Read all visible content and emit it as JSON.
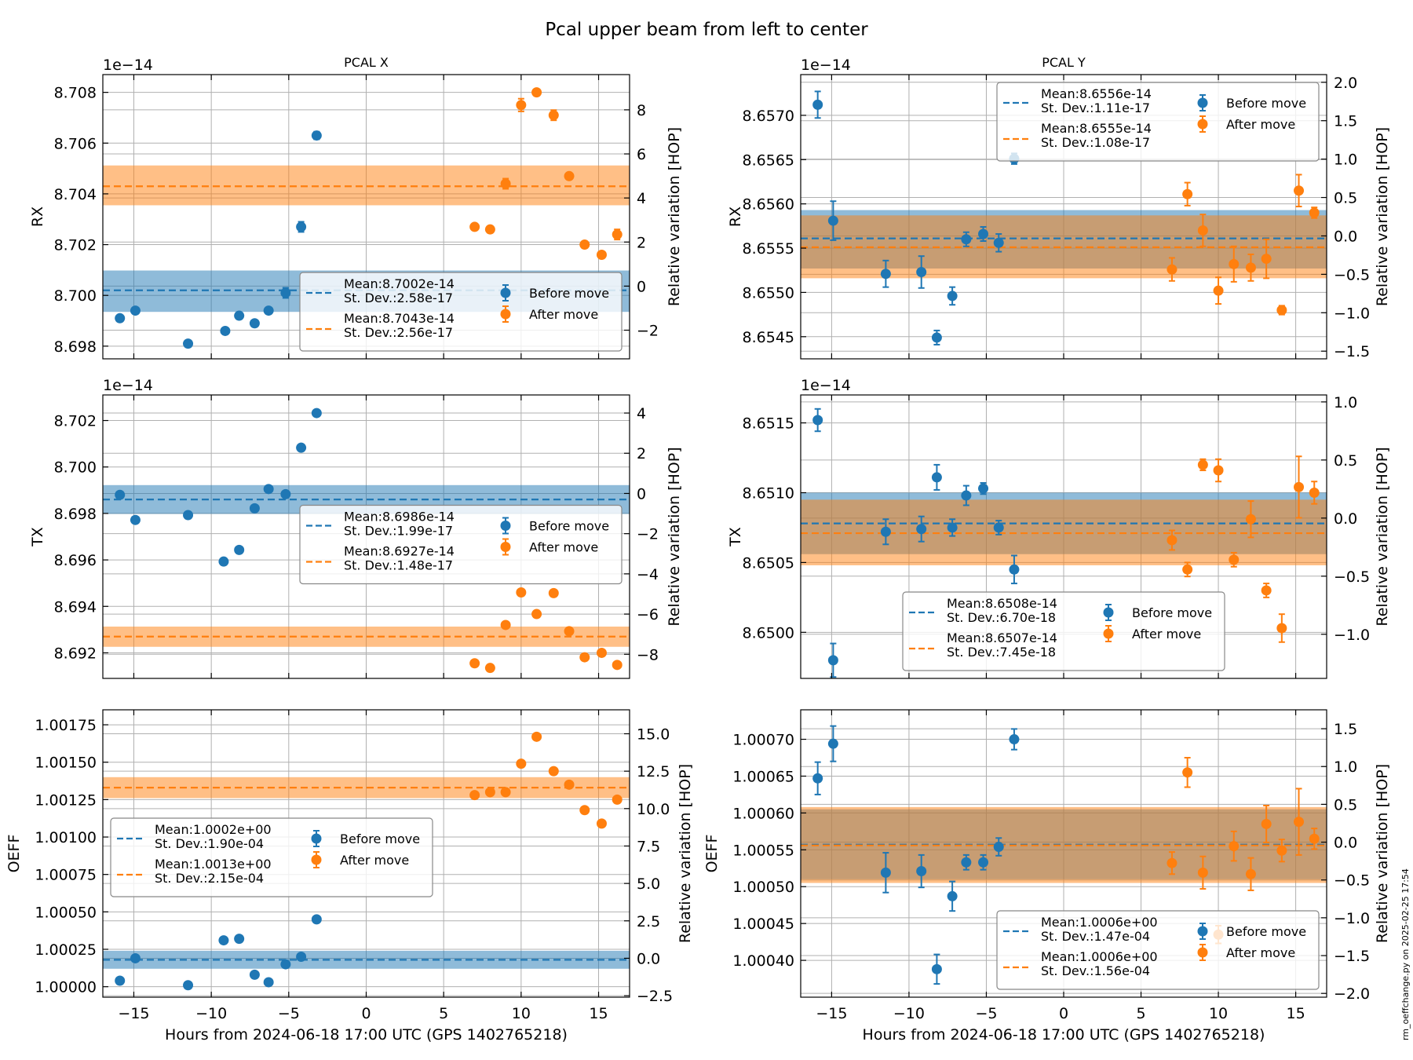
{
  "figure": {
    "title": "Pcal upper beam from left to center",
    "footer": "rm_oeffchange.py on 2025-02-25 17:54",
    "xlabel": "Hours from 2024-06-18 17:00 UTC (GPS 1402765218)"
  },
  "legend_labels": {
    "before": "Before move",
    "after": "After move"
  },
  "colors": {
    "before": "#1f77b4",
    "after": "#ff7f0e",
    "grid": "#b0b0b0"
  },
  "chart_data": [
    {
      "id": "x_rx",
      "column": "PCAL X",
      "type": "scatter",
      "title": "PCAL X",
      "ylabel": "RX",
      "ylabel_right": "Relative variation [HOP]",
      "offset_label": "1e−14",
      "xlim": [
        -17,
        17
      ],
      "xticks": [
        -15,
        -10,
        -5,
        0,
        5,
        10,
        15
      ],
      "show_xticklabels": false,
      "ylim": [
        8.6975,
        8.7087
      ],
      "yticks": [
        8.698,
        8.7,
        8.702,
        8.704,
        8.706,
        8.708
      ],
      "ytick_labels": [
        "8.698",
        "8.700",
        "8.702",
        "8.704",
        "8.706",
        "8.708"
      ],
      "ylim_right": [
        -3.3,
        9.6
      ],
      "yticks_right": [
        -2,
        0,
        2,
        4,
        6,
        8
      ],
      "ytick_labels_right": [
        "−2",
        "0",
        "2",
        "4",
        "6",
        "8"
      ],
      "legend": {
        "position": "lower-right",
        "before_mean": "Mean:8.7002e-14",
        "before_std": "St. Dev.:2.58e-17",
        "after_mean": "Mean:8.7043e-14",
        "after_std": "St. Dev.:2.56e-17"
      },
      "series": [
        {
          "name": "Before move",
          "mean": 8.7002,
          "std_band": [
            8.69935,
            8.70098
          ],
          "x": [
            -15.9,
            -14.9,
            -11.5,
            -9.1,
            -8.2,
            -7.2,
            -6.3,
            -5.2,
            -4.2,
            -3.2
          ],
          "y": [
            8.6991,
            8.6994,
            8.6981,
            8.6986,
            8.6992,
            8.6989,
            8.6994,
            8.7001,
            8.7027,
            8.7063
          ],
          "err": [
            5e-05,
            5e-05,
            5e-05,
            5e-05,
            5e-05,
            5e-05,
            5e-05,
            0.0002,
            0.0002,
            0.00015
          ]
        },
        {
          "name": "After move",
          "mean": 8.7043,
          "std_band": [
            8.70355,
            8.70512
          ],
          "x": [
            7.0,
            8.0,
            9.0,
            10.0,
            11.0,
            12.1,
            13.1,
            14.1,
            15.2,
            16.2
          ],
          "y": [
            8.7027,
            8.7026,
            8.7044,
            8.7075,
            8.708,
            8.7071,
            8.7047,
            8.702,
            8.7016,
            8.7024
          ],
          "err": [
            5e-05,
            5e-05,
            0.0002,
            0.00025,
            5e-05,
            0.0002,
            5e-05,
            5e-05,
            5e-05,
            0.0002
          ]
        }
      ]
    },
    {
      "id": "y_rx",
      "column": "PCAL Y",
      "type": "scatter",
      "title": "PCAL Y",
      "ylabel": "RX",
      "ylabel_right": "Relative variation [HOP]",
      "offset_label": "1e−14",
      "xlim": [
        -17,
        17
      ],
      "xticks": [
        -15,
        -10,
        -5,
        0,
        5,
        10,
        15
      ],
      "show_xticklabels": false,
      "ylim": [
        8.65425,
        8.65746
      ],
      "yticks": [
        8.6545,
        8.655,
        8.6555,
        8.656,
        8.6565,
        8.657
      ],
      "ytick_labels": [
        "8.6545",
        "8.6550",
        "8.6555",
        "8.6560",
        "8.6565",
        "8.6570"
      ],
      "ylim_right": [
        -1.6,
        2.1
      ],
      "yticks_right": [
        -1.5,
        -1.0,
        -0.5,
        0.0,
        0.5,
        1.0,
        1.5,
        2.0
      ],
      "ytick_labels_right": [
        "−1.5",
        "−1.0",
        "−0.5",
        "0.0",
        "0.5",
        "1.0",
        "1.5",
        "2.0"
      ],
      "legend": {
        "position": "upper-right",
        "before_mean": "Mean:8.6556e-14",
        "before_std": "St. Dev.:1.11e-17",
        "after_mean": "Mean:8.6555e-14",
        "after_std": "St. Dev.:1.08e-17"
      },
      "series": [
        {
          "name": "Before move",
          "mean": 8.65561,
          "std_band": [
            8.65527,
            8.65593
          ],
          "x": [
            -15.9,
            -14.9,
            -11.5,
            -9.2,
            -8.2,
            -7.2,
            -6.3,
            -5.2,
            -4.2,
            -3.2
          ],
          "y": [
            8.65712,
            8.65581,
            8.65521,
            8.65523,
            8.65449,
            8.65496,
            8.6556,
            8.65566,
            8.65556,
            8.65651
          ],
          "err": [
            0.00015,
            0.00022,
            0.00015,
            0.00018,
            8e-05,
            0.0001,
            8e-05,
            8e-05,
            0.0001,
            6e-05
          ]
        },
        {
          "name": "After move",
          "mean": 8.65551,
          "std_band": [
            8.65516,
            8.65587
          ],
          "x": [
            7.0,
            8.0,
            9.0,
            10.0,
            11.0,
            12.1,
            13.1,
            14.1,
            15.2,
            16.2
          ],
          "y": [
            8.65526,
            8.65611,
            8.6557,
            8.65502,
            8.65532,
            8.65528,
            8.65538,
            8.6548,
            8.65615,
            8.6559
          ],
          "err": [
            0.00013,
            0.00013,
            0.00018,
            0.00015,
            0.0002,
            0.00015,
            0.00022,
            5e-05,
            0.00018,
            6e-05
          ]
        }
      ]
    },
    {
      "id": "x_tx",
      "column": "PCAL X",
      "type": "scatter",
      "ylabel": "TX",
      "ylabel_right": "Relative variation [HOP]",
      "offset_label": "1e−14",
      "xlim": [
        -17,
        17
      ],
      "xticks": [
        -15,
        -10,
        -5,
        0,
        5,
        10,
        15
      ],
      "show_xticklabels": false,
      "ylim": [
        8.6909,
        8.7031
      ],
      "yticks": [
        8.692,
        8.694,
        8.696,
        8.698,
        8.7,
        8.702
      ],
      "ytick_labels": [
        "8.692",
        "8.694",
        "8.696",
        "8.698",
        "8.700",
        "8.702"
      ],
      "ylim_right": [
        -9.2,
        4.9
      ],
      "yticks_right": [
        -8,
        -6,
        -4,
        -2,
        0,
        2,
        4
      ],
      "ytick_labels_right": [
        "−8",
        "−6",
        "−4",
        "−2",
        "0",
        "2",
        "4"
      ],
      "legend": {
        "position": "center-right",
        "before_mean": "Mean:8.6986e-14",
        "before_std": "St. Dev.:1.99e-17",
        "after_mean": "Mean:8.6927e-14",
        "after_std": "St. Dev.:1.48e-17"
      },
      "series": [
        {
          "name": "Before move",
          "mean": 8.6986,
          "std_band": [
            8.69798,
            8.69922
          ],
          "x": [
            -15.9,
            -14.9,
            -11.5,
            -9.2,
            -8.2,
            -7.2,
            -6.3,
            -5.2,
            -4.2,
            -3.2
          ],
          "y": [
            8.6988,
            8.69772,
            8.69793,
            8.69593,
            8.69643,
            8.69822,
            8.69905,
            8.69883,
            8.70083,
            8.70232
          ],
          "err": [
            5e-05,
            5e-05,
            5e-05,
            5e-05,
            5e-05,
            5e-05,
            5e-05,
            5e-05,
            5e-05,
            5e-05
          ]
        },
        {
          "name": "After move",
          "mean": 8.6927,
          "std_band": [
            8.69226,
            8.69313
          ],
          "x": [
            7.0,
            8.0,
            9.0,
            10.0,
            11.0,
            12.1,
            13.1,
            14.1,
            15.2,
            16.2
          ],
          "y": [
            8.69155,
            8.69135,
            8.6932,
            8.6946,
            8.69367,
            8.69457,
            8.69293,
            8.69181,
            8.692,
            8.69148
          ],
          "err": [
            5e-05,
            5e-05,
            5e-05,
            5e-05,
            5e-05,
            5e-05,
            5e-05,
            5e-05,
            5e-05,
            5e-05
          ]
        }
      ]
    },
    {
      "id": "y_tx",
      "column": "PCAL Y",
      "type": "scatter",
      "ylabel": "TX",
      "ylabel_right": "Relative variation [HOP]",
      "offset_label": "1e−14",
      "xlim": [
        -17,
        17
      ],
      "xticks": [
        -15,
        -10,
        -5,
        0,
        5,
        10,
        15
      ],
      "show_xticklabels": false,
      "ylim": [
        8.64967,
        8.6517
      ],
      "yticks": [
        8.65,
        8.6505,
        8.651,
        8.6515
      ],
      "ytick_labels": [
        "8.6500",
        "8.6505",
        "8.6510",
        "8.6515"
      ],
      "ylim_right": [
        -1.38,
        1.06
      ],
      "yticks_right": [
        -1.0,
        -0.5,
        0.0,
        0.5,
        1.0
      ],
      "ytick_labels_right": [
        "−1.0",
        "−0.5",
        "0.0",
        "0.5",
        "1.0"
      ],
      "legend": {
        "position": "lower-center",
        "before_mean": "Mean:8.6508e-14",
        "before_std": "St. Dev.:6.70e-18",
        "after_mean": "Mean:8.6507e-14",
        "after_std": "St. Dev.:7.45e-18"
      },
      "series": [
        {
          "name": "Before move",
          "mean": 8.65078,
          "std_band": [
            8.65056,
            8.651
          ],
          "x": [
            -15.9,
            -14.9,
            -11.5,
            -9.2,
            -8.2,
            -7.2,
            -6.3,
            -5.2,
            -4.2,
            -3.2
          ],
          "y": [
            8.65152,
            8.6498,
            8.65072,
            8.65074,
            8.65111,
            8.65075,
            8.65098,
            8.65103,
            8.65075,
            8.65045
          ],
          "err": [
            8e-05,
            0.00012,
            9e-05,
            9e-05,
            9e-05,
            6e-05,
            7e-05,
            4e-05,
            5e-05,
            0.0001
          ]
        },
        {
          "name": "After move",
          "mean": 8.65071,
          "std_band": [
            8.65048,
            8.65095
          ],
          "x": [
            7.0,
            8.0,
            9.0,
            10.0,
            11.0,
            12.1,
            13.1,
            14.1,
            15.2,
            16.2
          ],
          "y": [
            8.65066,
            8.65045,
            8.6512,
            8.65116,
            8.65052,
            8.65081,
            8.6503,
            8.65003,
            8.65104,
            8.651
          ],
          "err": [
            7e-05,
            5e-05,
            4e-05,
            8e-05,
            5e-05,
            0.00013,
            5e-05,
            0.0001,
            0.00022,
            8e-05
          ]
        }
      ]
    },
    {
      "id": "x_oeff",
      "column": "PCAL X",
      "type": "scatter",
      "ylabel": "OEFF",
      "ylabel_right": "Relative variation [HOP]",
      "offset_label": "",
      "xlim": [
        -17,
        17
      ],
      "xticks": [
        -15,
        -10,
        -5,
        0,
        5,
        10,
        15
      ],
      "show_xticklabels": true,
      "xtick_labels": [
        "−15",
        "−10",
        "−5",
        "0",
        "5",
        "10",
        "15"
      ],
      "xlabel": "Hours from 2024-06-18 17:00 UTC (GPS 1402765218)",
      "ylim": [
        0.99993,
        1.00185
      ],
      "yticks": [
        1.0,
        1.00025,
        1.0005,
        1.00075,
        1.001,
        1.00125,
        1.0015,
        1.00175
      ],
      "ytick_labels": [
        "1.00000",
        "1.00025",
        "1.00050",
        "1.00075",
        "1.00100",
        "1.00125",
        "1.00150",
        "1.00175"
      ],
      "ylim_right": [
        -2.6,
        16.6
      ],
      "yticks_right": [
        -2.5,
        0.0,
        2.5,
        5.0,
        7.5,
        10.0,
        12.5,
        15.0
      ],
      "ytick_labels_right": [
        "−2.5",
        "0.0",
        "2.5",
        "5.0",
        "7.5",
        "10.0",
        "12.5",
        "15.0"
      ],
      "legend": {
        "position": "center-left",
        "before_mean": "Mean:1.0002e+00",
        "before_std": "St. Dev.:1.90e-04",
        "after_mean": "Mean:1.0013e+00",
        "after_std": "St. Dev.:2.15e-04"
      },
      "series": [
        {
          "name": "Before move",
          "mean": 1.00018,
          "std_band": [
            1.00012,
            1.00024
          ],
          "x": [
            -15.9,
            -14.9,
            -11.5,
            -9.2,
            -8.2,
            -7.2,
            -6.3,
            -5.2,
            -4.2,
            -3.2
          ],
          "y": [
            1.00004,
            1.00019,
            1.00001,
            1.00031,
            1.00032,
            1.00008,
            1.00003,
            1.00015,
            1.0002,
            1.00045
          ],
          "err": [
            2e-05,
            2e-05,
            2e-05,
            2e-05,
            2e-05,
            2e-05,
            2e-05,
            2e-05,
            2e-05,
            2e-05
          ]
        },
        {
          "name": "After move",
          "mean": 1.00133,
          "std_band": [
            1.00126,
            1.0014
          ],
          "x": [
            7.0,
            8.0,
            9.0,
            10.0,
            11.0,
            12.1,
            13.1,
            14.1,
            15.2,
            16.2
          ],
          "y": [
            1.00128,
            1.0013,
            1.0013,
            1.00149,
            1.00167,
            1.00144,
            1.00135,
            1.00118,
            1.00109,
            1.00125
          ],
          "err": [
            2e-05,
            2e-05,
            2e-05,
            2e-05,
            2e-05,
            2e-05,
            2e-05,
            2e-05,
            2e-05,
            2e-05
          ]
        }
      ]
    },
    {
      "id": "y_oeff",
      "column": "PCAL Y",
      "type": "scatter",
      "ylabel": "OEFF",
      "ylabel_right": "Relative variation [HOP]",
      "offset_label": "",
      "xlim": [
        -17,
        17
      ],
      "xticks": [
        -15,
        -10,
        -5,
        0,
        5,
        10,
        15
      ],
      "show_xticklabels": true,
      "xtick_labels": [
        "−15",
        "−10",
        "−5",
        "0",
        "5",
        "10",
        "15"
      ],
      "xlabel": "Hours from 2024-06-18 17:00 UTC (GPS 1402765218)",
      "ylim": [
        1.00035,
        1.00074
      ],
      "yticks": [
        1.0004,
        1.00045,
        1.0005,
        1.00055,
        1.0006,
        1.00065,
        1.0007
      ],
      "ytick_labels": [
        "1.00040",
        "1.00045",
        "1.00050",
        "1.00055",
        "1.00060",
        "1.00065",
        "1.00070"
      ],
      "ylim_right": [
        -2.05,
        1.75
      ],
      "yticks_right": [
        -2.0,
        -1.5,
        -1.0,
        -0.5,
        0.0,
        0.5,
        1.0,
        1.5
      ],
      "ytick_labels_right": [
        "−2.0",
        "−1.5",
        "−1.0",
        "−0.5",
        "0.0",
        "0.5",
        "1.0",
        "1.5"
      ],
      "legend": {
        "position": "lower-right",
        "before_mean": "Mean:1.0006e+00",
        "before_std": "St. Dev.:1.47e-04",
        "after_mean": "Mean:1.0006e+00",
        "after_std": "St. Dev.:1.56e-04"
      },
      "series": [
        {
          "name": "Before move",
          "mean": 1.000557,
          "std_band": [
            1.00051,
            1.000605
          ],
          "x": [
            -15.9,
            -14.9,
            -11.5,
            -9.2,
            -8.2,
            -7.2,
            -6.3,
            -5.2,
            -4.2,
            -3.2
          ],
          "y": [
            1.000647,
            1.000694,
            1.000519,
            1.000521,
            1.000388,
            1.000487,
            1.000533,
            1.000533,
            1.000554,
            1.0007
          ],
          "err": [
            2.2e-05,
            2.4e-05,
            2.7e-05,
            2.2e-05,
            2e-05,
            2e-05,
            1e-05,
            1e-05,
            1.2e-05,
            1.4e-05
          ]
        },
        {
          "name": "After move",
          "mean": 1.000556,
          "std_band": [
            1.000505,
            1.000608
          ],
          "x": [
            7.0,
            8.0,
            9.0,
            10.0,
            11.0,
            12.1,
            13.1,
            14.1,
            15.2,
            16.2
          ],
          "y": [
            1.000532,
            1.000655,
            1.000519,
            1.000435,
            1.000555,
            1.000517,
            1.000585,
            1.000549,
            1.000588,
            1.000565
          ],
          "err": [
            1.5e-05,
            2e-05,
            2.2e-05,
            1.2e-05,
            2e-05,
            2.2e-05,
            2.5e-05,
            1.5e-05,
            4.5e-05,
            1.4e-05
          ]
        }
      ]
    }
  ]
}
